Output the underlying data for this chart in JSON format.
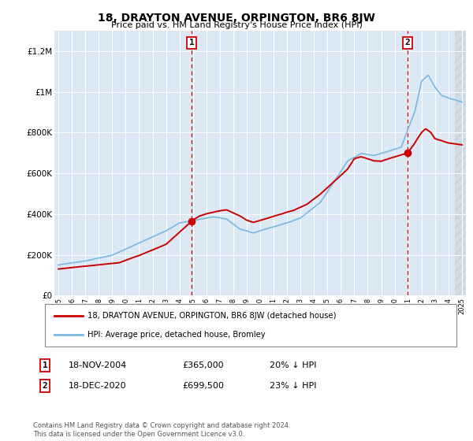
{
  "title": "18, DRAYTON AVENUE, ORPINGTON, BR6 8JW",
  "subtitle": "Price paid vs. HM Land Registry's House Price Index (HPI)",
  "background_color": "#ffffff",
  "plot_bg_color": "#dce9f5",
  "ylim": [
    0,
    1300000
  ],
  "yticks": [
    0,
    200000,
    400000,
    600000,
    800000,
    1000000,
    1200000
  ],
  "ytick_labels": [
    "£0",
    "£200K",
    "£400K",
    "£600K",
    "£800K",
    "£1M",
    "£1.2M"
  ],
  "x_start_year": 1995,
  "x_end_year": 2025,
  "hpi_color": "#7ab8e0",
  "price_color": "#cc0000",
  "vline_color": "#cc0000",
  "marker1_year": 2004.92,
  "marker1_price": 365000,
  "marker1_label": "1",
  "marker1_date": "18-NOV-2004",
  "marker1_amount": "£365,000",
  "marker1_pct": "20% ↓ HPI",
  "marker2_year": 2020.96,
  "marker2_price": 699500,
  "marker2_label": "2",
  "marker2_date": "18-DEC-2020",
  "marker2_amount": "£699,500",
  "marker2_pct": "23% ↓ HPI",
  "legend_line1": "18, DRAYTON AVENUE, ORPINGTON, BR6 8JW (detached house)",
  "legend_line2": "HPI: Average price, detached house, Bromley",
  "footer": "Contains HM Land Registry data © Crown copyright and database right 2024.\nThis data is licensed under the Open Government Licence v3.0."
}
